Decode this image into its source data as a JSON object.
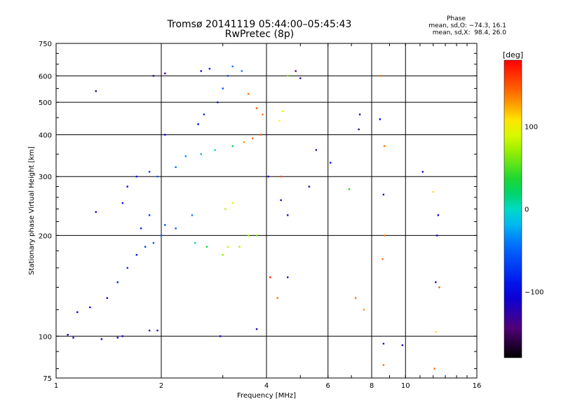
{
  "title_line1": "Tromsø 20141119 05:44:00–05:45:43",
  "title_line2": "RwPretec (8p)",
  "phase_stats": {
    "heading": "Phase",
    "line0": "mean, sd,O: −74.3, 16.1",
    "lineX": "mean, sd,X:  98.4, 26.0"
  },
  "colorbar": {
    "unit": "[deg]",
    "ticks": [
      {
        "value": 100,
        "label": "100"
      },
      {
        "value": 0,
        "label": "0"
      },
      {
        "value": -100,
        "label": "−100"
      }
    ],
    "range": [
      -180,
      180
    ]
  },
  "chart_data": {
    "type": "scatter",
    "xlabel": "Frequency [MHz]",
    "ylabel": "Stationary phase Virtual Height [km]",
    "xscale": "log",
    "yscale": "log",
    "xlim": [
      1,
      16
    ],
    "ylim": [
      75,
      750
    ],
    "xticks": [
      {
        "v": 1,
        "label": "1"
      },
      {
        "v": 2,
        "label": "2"
      },
      {
        "v": 4,
        "label": "4"
      },
      {
        "v": 6,
        "label": "6"
      },
      {
        "v": 8,
        "label": "8"
      },
      {
        "v": 10,
        "label": "10"
      },
      {
        "v": 16,
        "label": "16"
      }
    ],
    "yticks": [
      {
        "v": 75,
        "label": "75"
      },
      {
        "v": 100,
        "label": "100"
      },
      {
        "v": 200,
        "label": "200"
      },
      {
        "v": 300,
        "label": "300"
      },
      {
        "v": 400,
        "label": "400"
      },
      {
        "v": 500,
        "label": "500"
      },
      {
        "v": 600,
        "label": "600"
      },
      {
        "v": 750,
        "label": "750"
      }
    ],
    "xgrid": [
      2,
      4,
      6,
      8,
      10
    ],
    "ygrid": [
      100,
      200,
      300,
      400,
      500,
      600
    ],
    "color_value": "phase [deg]",
    "series": [
      {
        "points": [
          [
            1.08,
            101,
            -110
          ],
          [
            1.12,
            99,
            -120
          ],
          [
            1.35,
            98,
            -100
          ],
          [
            1.5,
            99,
            -120
          ],
          [
            1.55,
            100,
            -110
          ],
          [
            1.85,
            104,
            -130
          ],
          [
            1.95,
            104,
            -120
          ],
          [
            1.15,
            118,
            -110
          ],
          [
            1.25,
            122,
            -100
          ],
          [
            1.4,
            130,
            -100
          ],
          [
            1.5,
            145,
            -90
          ],
          [
            1.6,
            160,
            -80
          ],
          [
            1.7,
            175,
            -90
          ],
          [
            1.8,
            185,
            -70
          ],
          [
            1.9,
            190,
            -60
          ],
          [
            2.0,
            200,
            -50
          ],
          [
            1.75,
            210,
            -90
          ],
          [
            1.85,
            230,
            -70
          ],
          [
            2.05,
            215,
            -60
          ],
          [
            2.2,
            210,
            -50
          ],
          [
            2.45,
            230,
            -40
          ],
          [
            2.5,
            190,
            10
          ],
          [
            2.7,
            185,
            30
          ],
          [
            3.05,
            240,
            80
          ],
          [
            3.2,
            250,
            90
          ],
          [
            3.1,
            185,
            80
          ],
          [
            3.35,
            185,
            75
          ],
          [
            3.55,
            200,
            70
          ],
          [
            3.75,
            200,
            60
          ],
          [
            3.0,
            175,
            70
          ],
          [
            1.3,
            235,
            -110
          ],
          [
            1.55,
            250,
            -90
          ],
          [
            1.6,
            280,
            -100
          ],
          [
            1.7,
            300,
            -90
          ],
          [
            1.85,
            310,
            -70
          ],
          [
            1.95,
            300,
            -50
          ],
          [
            2.2,
            320,
            -40
          ],
          [
            2.35,
            345,
            -30
          ],
          [
            2.6,
            350,
            -20
          ],
          [
            2.85,
            360,
            -10
          ],
          [
            3.2,
            370,
            30
          ],
          [
            3.45,
            380,
            130
          ],
          [
            3.65,
            390,
            140
          ],
          [
            3.85,
            400,
            150
          ],
          [
            2.05,
            400,
            -100
          ],
          [
            2.55,
            430,
            -100
          ],
          [
            2.65,
            460,
            -80
          ],
          [
            2.9,
            500,
            -90
          ],
          [
            3.0,
            550,
            -60
          ],
          [
            3.1,
            600,
            -60
          ],
          [
            3.2,
            640,
            -40
          ],
          [
            3.4,
            620,
            -40
          ],
          [
            3.55,
            530,
            140
          ],
          [
            3.75,
            480,
            150
          ],
          [
            3.9,
            460,
            140
          ],
          [
            4.35,
            440,
            100
          ],
          [
            4.45,
            470,
            90
          ],
          [
            4.6,
            600,
            60
          ],
          [
            4.85,
            620,
            -140
          ],
          [
            5.0,
            590,
            -130
          ],
          [
            1.9,
            600,
            -130
          ],
          [
            2.05,
            610,
            -140
          ],
          [
            2.6,
            620,
            -100
          ],
          [
            2.75,
            630,
            -90
          ],
          [
            1.3,
            540,
            -120
          ],
          [
            2.95,
            100,
            -110
          ],
          [
            3.75,
            105,
            -120
          ],
          [
            4.05,
            300,
            -120
          ],
          [
            4.4,
            300,
            150
          ],
          [
            4.4,
            255,
            -100
          ],
          [
            4.6,
            230,
            -120
          ],
          [
            5.3,
            280,
            -120
          ],
          [
            5.55,
            360,
            -130
          ],
          [
            6.1,
            330,
            -90
          ],
          [
            6.9,
            275,
            40
          ],
          [
            7.35,
            415,
            -130
          ],
          [
            7.4,
            460,
            -130
          ],
          [
            8.45,
            600,
            140
          ],
          [
            8.45,
            445,
            -100
          ],
          [
            8.7,
            370,
            140
          ],
          [
            8.65,
            265,
            -110
          ],
          [
            8.7,
            200,
            140
          ],
          [
            8.6,
            170,
            140
          ],
          [
            8.65,
            95,
            -90
          ],
          [
            8.65,
            82,
            140
          ],
          [
            9.8,
            94,
            -120
          ],
          [
            11.2,
            310,
            -120
          ],
          [
            12.0,
            270,
            110
          ],
          [
            12.4,
            230,
            -110
          ],
          [
            12.3,
            200,
            -110
          ],
          [
            12.2,
            145,
            -120
          ],
          [
            12.2,
            103,
            110
          ],
          [
            12.1,
            80,
            140
          ],
          [
            12.5,
            140,
            150
          ],
          [
            4.3,
            130,
            140
          ],
          [
            4.1,
            150,
            170
          ],
          [
            7.2,
            130,
            140
          ],
          [
            7.6,
            120,
            130
          ],
          [
            4.6,
            150,
            -90
          ]
        ]
      }
    ]
  }
}
